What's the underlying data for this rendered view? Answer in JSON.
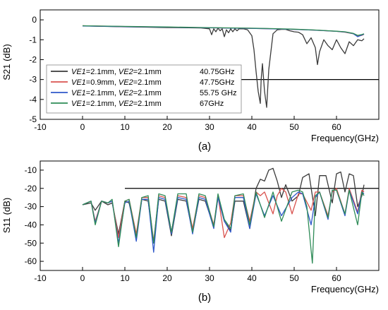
{
  "chart_data": [
    {
      "type": "line",
      "panel_label": "(a)",
      "xlabel": "Frequency(GHz)",
      "ylabel": "S21 (dB)",
      "xlim": [
        -10,
        70
      ],
      "ylim": [
        -5,
        0.5
      ],
      "xticks": [
        -10,
        0,
        10,
        20,
        30,
        40,
        50,
        60
      ],
      "yticks": [
        0,
        -1,
        -2,
        -3,
        -4,
        -5
      ],
      "reference_line": -3,
      "legend_position": "lower-left",
      "series": [
        {
          "legend": {
            "ve1_label": "VE1",
            "ve1_value": "=2.1mm,",
            "ve2_label": "VE2",
            "ve2_value": "=2.1mm",
            "freq": "40.75GHz"
          },
          "color": "#3a3a3a",
          "x": [
            0,
            5,
            10,
            15,
            20,
            25,
            28,
            30,
            30.5,
            31,
            31.5,
            32,
            32.5,
            33,
            33.5,
            34,
            34.5,
            35,
            35.5,
            36,
            36.5,
            37,
            38,
            39,
            40,
            40.5,
            41,
            41.5,
            42,
            42.2,
            42.5,
            43,
            43.5,
            44,
            45,
            46,
            47,
            48,
            49,
            50,
            51,
            52,
            53,
            54,
            55,
            55.5,
            56,
            57,
            58,
            59,
            60,
            61,
            62,
            63,
            64,
            65,
            66,
            66.5
          ],
          "y": [
            -0.3,
            -0.33,
            -0.35,
            -0.37,
            -0.39,
            -0.4,
            -0.41,
            -0.45,
            -0.75,
            -0.45,
            -0.6,
            -0.42,
            -0.55,
            -0.45,
            -0.85,
            -0.5,
            -0.65,
            -0.45,
            -0.6,
            -0.45,
            -0.55,
            -0.45,
            -0.45,
            -0.5,
            -0.8,
            -1.5,
            -2.6,
            -3.6,
            -4.2,
            -3.0,
            -2.2,
            -3.6,
            -4.4,
            -2.5,
            -0.7,
            -0.5,
            -0.48,
            -0.48,
            -0.55,
            -0.6,
            -0.62,
            -0.75,
            -1.2,
            -0.9,
            -1.4,
            -2.25,
            -1.6,
            -1.0,
            -1.3,
            -1.5,
            -1.0,
            -1.4,
            -1.7,
            -1.1,
            -1.3,
            -1.0,
            -1.05,
            -0.95
          ]
        },
        {
          "legend": {
            "ve1_label": "VE1",
            "ve1_value": "=0.9mm,",
            "ve2_label": "VE2",
            "ve2_value": "=2.1mm",
            "freq": "47.75GHz"
          },
          "color": "#d9534f",
          "x": [
            0,
            10,
            20,
            30,
            40,
            45,
            50,
            55,
            60,
            62,
            64,
            65,
            66,
            66.5
          ],
          "y": [
            -0.3,
            -0.34,
            -0.37,
            -0.4,
            -0.43,
            -0.45,
            -0.48,
            -0.52,
            -0.58,
            -0.62,
            -0.7,
            -0.82,
            -0.78,
            -0.72
          ]
        },
        {
          "legend": {
            "ve1_label": "VE1",
            "ve1_value": "=2.1mm,",
            "ve2_label": "VE2",
            "ve2_value": "=2.1mm",
            "freq": "55.75 GHz"
          },
          "color": "#2f58c9",
          "x": [
            0,
            10,
            20,
            30,
            40,
            45,
            50,
            55,
            60,
            62,
            64,
            65,
            66,
            66.5
          ],
          "y": [
            -0.31,
            -0.34,
            -0.37,
            -0.4,
            -0.43,
            -0.45,
            -0.48,
            -0.52,
            -0.58,
            -0.61,
            -0.7,
            -0.85,
            -0.76,
            -0.72
          ]
        },
        {
          "legend": {
            "ve1_label": "VE1",
            "ve1_value": "=2.1mm,",
            "ve2_label": "VE2",
            "ve2_value": "=2.1mm",
            "freq": "67GHz"
          },
          "color": "#2e8b57",
          "x": [
            0,
            10,
            20,
            30,
            40,
            45,
            50,
            55,
            60,
            62,
            64,
            65,
            66,
            66.5
          ],
          "y": [
            -0.3,
            -0.33,
            -0.36,
            -0.39,
            -0.42,
            -0.44,
            -0.47,
            -0.51,
            -0.57,
            -0.6,
            -0.68,
            -0.78,
            -0.74,
            -0.7
          ]
        }
      ]
    },
    {
      "type": "line",
      "panel_label": "(b)",
      "xlabel": "Frequency(GHz)",
      "ylabel": "S11 (dB)",
      "xlim": [
        -10,
        70
      ],
      "ylim": [
        -65,
        -5
      ],
      "xticks": [
        -10,
        0,
        10,
        20,
        30,
        40,
        50,
        60
      ],
      "yticks": [
        -10,
        -20,
        -30,
        -40,
        -50,
        -60
      ],
      "reference_line": -20,
      "series": [
        {
          "name": "40.75GHz",
          "color": "#3a3a3a",
          "x": [
            0,
            2,
            3,
            4.5,
            6,
            7,
            8.5,
            10,
            11,
            12.7,
            14,
            15.5,
            16.8,
            18,
            19.5,
            21,
            22.5,
            24.5,
            26,
            27.5,
            29,
            31,
            32,
            33.5,
            35,
            36,
            38,
            39.5,
            41,
            42,
            43,
            44,
            45,
            46,
            47,
            48,
            49.5,
            51,
            52,
            53.5,
            55,
            56,
            57.5,
            59,
            60,
            61,
            62,
            63,
            64,
            65,
            66,
            66.5
          ],
          "y": [
            -29,
            -28,
            -32,
            -27,
            -29,
            -28,
            -45,
            -27,
            -28,
            -46,
            -26,
            -27,
            -50,
            -26,
            -27,
            -46,
            -26,
            -27,
            -44,
            -26,
            -27,
            -41,
            -25,
            -38,
            -43,
            -27,
            -27,
            -42,
            -20,
            -15,
            -16,
            -10,
            -9,
            -16,
            -25,
            -18,
            -27,
            -24,
            -14,
            -12,
            -35,
            -13,
            -13,
            -28,
            -12,
            -11,
            -22,
            -12,
            -13,
            -30,
            -24,
            -18
          ]
        },
        {
          "name": "47.75GHz",
          "color": "#d9534f",
          "x": [
            0,
            2,
            3,
            4.5,
            6,
            7,
            8.5,
            10,
            11,
            12.7,
            14,
            15.5,
            16.8,
            18,
            19.5,
            21,
            22.5,
            24.5,
            26,
            27.5,
            29,
            31,
            32,
            33.5,
            35,
            36,
            38,
            39.5,
            41,
            42,
            43,
            45,
            46,
            47,
            48,
            49.5,
            51,
            52,
            54,
            55,
            56,
            58,
            59,
            60,
            62,
            63,
            65,
            66,
            66.5
          ],
          "y": [
            -29,
            -27,
            -38,
            -27,
            -28,
            -27,
            -47,
            -27,
            -26,
            -45,
            -25,
            -25,
            -49,
            -24,
            -25,
            -44,
            -24,
            -25,
            -42,
            -24,
            -25,
            -40,
            -24,
            -47,
            -39,
            -24,
            -24,
            -38,
            -22,
            -24,
            -22,
            -34,
            -24,
            -20,
            -22,
            -34,
            -23,
            -23,
            -32,
            -22,
            -22,
            -35,
            -22,
            -20,
            -34,
            -20,
            -33,
            -21,
            -22
          ]
        },
        {
          "name": "55.75 GHz",
          "color": "#2f58c9",
          "x": [
            0,
            2,
            3,
            4.5,
            6,
            7,
            8.5,
            10,
            11,
            12.7,
            14,
            15.5,
            16.8,
            18,
            19.5,
            21,
            22.5,
            24.5,
            26,
            27.5,
            29,
            31,
            32,
            33.5,
            35,
            36,
            38,
            39.5,
            41,
            43,
            45,
            47,
            49.5,
            51,
            52,
            54,
            55,
            56,
            58,
            59,
            60,
            62,
            63,
            65,
            66,
            66.5
          ],
          "y": [
            -29,
            -27,
            -39,
            -27,
            -28,
            -27,
            -50,
            -28,
            -27,
            -49,
            -26,
            -26,
            -55,
            -25,
            -26,
            -45,
            -25,
            -26,
            -45,
            -25,
            -26,
            -42,
            -25,
            -38,
            -44,
            -25,
            -25,
            -42,
            -23,
            -35,
            -24,
            -35,
            -25,
            -22,
            -23,
            -40,
            -25,
            -22,
            -37,
            -21,
            -21,
            -35,
            -21,
            -34,
            -22,
            -23
          ]
        },
        {
          "name": "67GHz",
          "color": "#2e8b57",
          "x": [
            0,
            2,
            3,
            4.5,
            6,
            7,
            8.5,
            10,
            11,
            12.7,
            14,
            15.5,
            16.8,
            18,
            19.5,
            21,
            22.5,
            24.5,
            26,
            27.5,
            29,
            31,
            32,
            33.5,
            35,
            36,
            38,
            39.5,
            41,
            43,
            45,
            47,
            49.5,
            51,
            52,
            53,
            54.3,
            55,
            56,
            58,
            59,
            60,
            62,
            63,
            65,
            66,
            66.5
          ],
          "y": [
            -29,
            -27,
            -40,
            -27,
            -28,
            -26,
            -52,
            -27,
            -26,
            -47,
            -25,
            -24,
            -50,
            -23,
            -24,
            -44,
            -23,
            -23,
            -44,
            -23,
            -24,
            -41,
            -23,
            -37,
            -42,
            -24,
            -23,
            -40,
            -22,
            -36,
            -22,
            -38,
            -22,
            -21,
            -22,
            -30,
            -61,
            -24,
            -22,
            -36,
            -21,
            -21,
            -34,
            -21,
            -40,
            -22,
            -24
          ]
        }
      ]
    }
  ]
}
